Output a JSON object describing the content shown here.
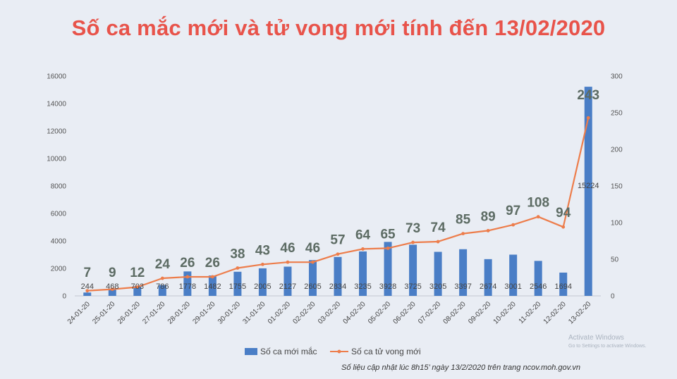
{
  "chart_data": {
    "type": "bar",
    "title": "Số ca mắc mới và tử vong mới tính đến 13/02/2020",
    "categories": [
      "24-01-20",
      "25-01-20",
      "26-01-20",
      "27-01-20",
      "28-01-20",
      "29-01-20",
      "30-01-20",
      "31-01-20",
      "01-02-20",
      "02-02-20",
      "03-02-20",
      "04-02-20",
      "05-02-20",
      "06-02-20",
      "07-02-20",
      "08-02-20",
      "09-02-20",
      "10-02-20",
      "11-02-20",
      "12-02-20",
      "13-02-20"
    ],
    "series": [
      {
        "name": "Số ca mới mắc",
        "type": "bar",
        "axis": "left",
        "color": "#4a7ec6",
        "values": [
          244,
          468,
          703,
          786,
          1778,
          1482,
          1755,
          2005,
          2127,
          2605,
          2834,
          3235,
          3928,
          3725,
          3205,
          3397,
          2674,
          3001,
          2546,
          1694,
          15224
        ],
        "data_labels": [
          "244",
          "468",
          "703",
          "786",
          "1778",
          "1482",
          "1755",
          "2005",
          "2127",
          "2605",
          "2834",
          "3235",
          "3928",
          "3725",
          "3205",
          "3397",
          "2674",
          "3001",
          "2546",
          "1694",
          "15224"
        ]
      },
      {
        "name": "Số ca tử vong mới",
        "type": "line",
        "axis": "right",
        "color": "#ed7d4b",
        "values": [
          7,
          9,
          12,
          24,
          26,
          26,
          38,
          43,
          46,
          46,
          57,
          64,
          65,
          73,
          74,
          85,
          89,
          97,
          108,
          94,
          243
        ],
        "data_labels": [
          "7",
          "9",
          "12",
          "24",
          "26",
          "26",
          "38",
          "43",
          "46",
          "46",
          "57",
          "64",
          "65",
          "73",
          "74",
          "85",
          "89",
          "97",
          "108",
          "94",
          "243"
        ]
      }
    ],
    "y_left": {
      "min": 0,
      "max": 16000,
      "ticks": [
        "0",
        "2000",
        "4000",
        "6000",
        "8000",
        "10000",
        "12000",
        "14000",
        "16000"
      ]
    },
    "y_right": {
      "min": 0,
      "max": 300,
      "ticks": [
        "0",
        "50",
        "100",
        "150",
        "200",
        "250",
        "300"
      ]
    },
    "legend_position": "bottom",
    "grid": false
  },
  "legend": {
    "bar_label": "Số ca mới mắc",
    "line_label": "Số ca tử vong mới"
  },
  "source_note": "Số liệu cập nhật lúc 8h15’ ngày 13/2/2020 trên trang ncov.moh.gov.vn",
  "watermark": {
    "title": "Activate Windows",
    "subtitle": "Go to Settings to activate Windows."
  }
}
